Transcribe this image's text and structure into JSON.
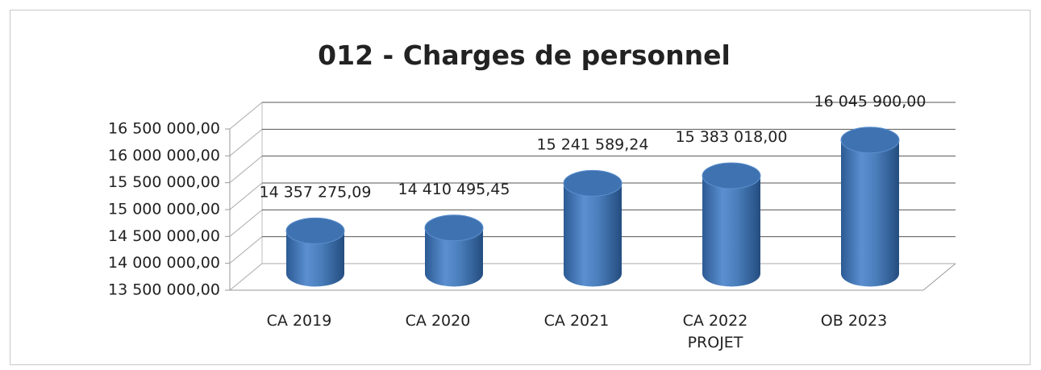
{
  "chart_data": {
    "type": "bar3d",
    "title": "012 - Charges de personnel",
    "categories": [
      "CA 2019",
      "CA 2020",
      "CA 2021",
      "CA 2022 PROJET",
      "OB 2023"
    ],
    "values": [
      14357275.09,
      14410495.45,
      15241589.24,
      15383018.0,
      16045900.0
    ],
    "value_labels": [
      "14 357 275,09",
      "14 410 495,45",
      "15 241 589,24",
      "15 383 018,00",
      "16 045 900,00"
    ],
    "color": "#4a7ebb",
    "ylim": [
      13500000,
      16500000
    ],
    "yticks": [
      {
        "value": 13500000,
        "label": "13 500 000,00"
      },
      {
        "value": 14000000,
        "label": "14 000 000,00"
      },
      {
        "value": 14500000,
        "label": "14 500 000,00"
      },
      {
        "value": 15000000,
        "label": "15 000 000,00"
      },
      {
        "value": 15500000,
        "label": "15 500 000,00"
      },
      {
        "value": 16000000,
        "label": "16 000 000,00"
      },
      {
        "value": 16500000,
        "label": "16 500 000,00"
      }
    ],
    "grid": true
  }
}
